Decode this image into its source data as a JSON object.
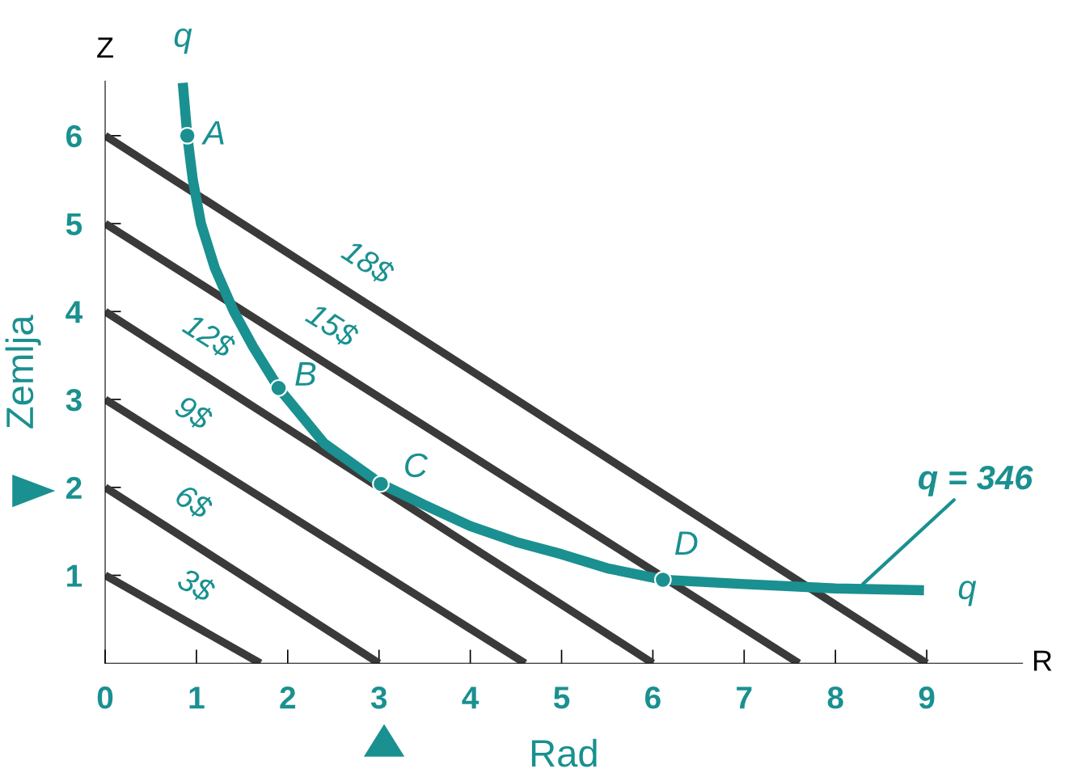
{
  "chart_data": {
    "type": "line",
    "xlabel": "Rad",
    "ylabel": "Zemlja",
    "series": [
      {
        "name": "3$",
        "color": "#3a3a3a",
        "x": [
          0,
          1.7
        ],
        "values": [
          1,
          0
        ]
      },
      {
        "name": "6$",
        "color": "#3a3a3a",
        "x": [
          0,
          3.0
        ],
        "values": [
          2,
          0
        ]
      },
      {
        "name": "9$",
        "color": "#3a3a3a",
        "x": [
          0,
          4.6
        ],
        "values": [
          3,
          0
        ]
      },
      {
        "name": "12$",
        "color": "#3a3a3a",
        "x": [
          0,
          6.0
        ],
        "values": [
          4,
          0
        ]
      },
      {
        "name": "15$",
        "color": "#3a3a3a",
        "x": [
          0,
          7.6
        ],
        "values": [
          5,
          0
        ]
      },
      {
        "name": "18$",
        "color": "#3a3a3a",
        "x": [
          0,
          9.0
        ],
        "values": [
          6,
          0
        ]
      },
      {
        "color": "#1a9090",
        "x": [
          0.85,
          0.9,
          0.96,
          1.05,
          1.2,
          1.41,
          1.62,
          1.9,
          2.4,
          3.02,
          3.5,
          4.0,
          4.5,
          5.0,
          5.5,
          6.11,
          7.0,
          8.0,
          8.97
        ],
        "values": [
          6.6,
          6.0,
          5.5,
          5.0,
          4.5,
          4.0,
          3.6,
          3.13,
          2.5,
          2.04,
          1.8,
          1.56,
          1.38,
          1.24,
          1.08,
          0.95,
          0.9,
          0.85,
          0.83
        ]
      },
      {
        "type": "scatter",
        "color": "#1a9090",
        "x": [
          0.9,
          1.9,
          3.02,
          6.11
        ],
        "values": [
          6.0,
          3.13,
          2.04,
          0.95
        ]
      }
    ],
    "annotations": [
      {
        "text": "A",
        "x": 0.9,
        "y": 6.0
      },
      {
        "text": "B",
        "x": 1.9,
        "y": 3.13
      },
      {
        "text": "C",
        "x": 3.02,
        "y": 2.04
      },
      {
        "text": "D",
        "x": 6.11,
        "y": 0.95
      },
      {
        "text": "q",
        "x": 0.85,
        "y": 6.6
      },
      {
        "text": "q",
        "x": 8.97,
        "y": 0.83
      },
      {
        "text": "q = 346",
        "x": 8.3,
        "y": 0.9
      },
      "Z",
      "R"
    ],
    "xlim": [
      0,
      10.05
    ],
    "ylim": [
      0,
      6.62
    ],
    "xticks": [
      0,
      1,
      2,
      3,
      4,
      5,
      6,
      7,
      8,
      9
    ],
    "yticks": [
      1,
      2,
      3,
      4,
      5,
      6
    ],
    "grid": false,
    "legend": false,
    "line_style": "solid"
  }
}
